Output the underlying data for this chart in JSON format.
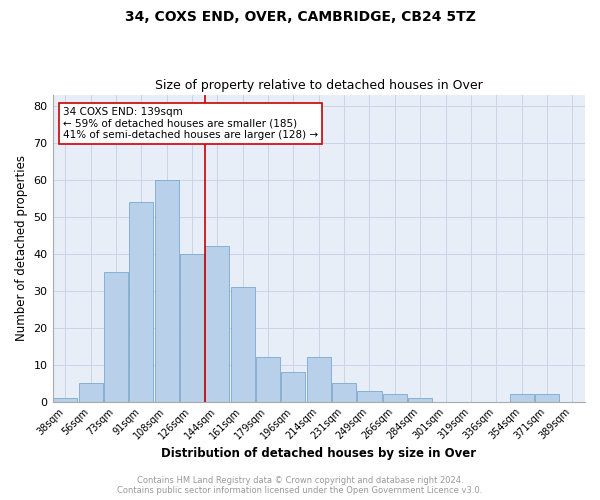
{
  "title1": "34, COXS END, OVER, CAMBRIDGE, CB24 5TZ",
  "title2": "Size of property relative to detached houses in Over",
  "xlabel": "Distribution of detached houses by size in Over",
  "ylabel": "Number of detached properties",
  "categories": [
    "38sqm",
    "56sqm",
    "73sqm",
    "91sqm",
    "108sqm",
    "126sqm",
    "144sqm",
    "161sqm",
    "179sqm",
    "196sqm",
    "214sqm",
    "231sqm",
    "249sqm",
    "266sqm",
    "284sqm",
    "301sqm",
    "319sqm",
    "336sqm",
    "354sqm",
    "371sqm",
    "389sqm"
  ],
  "values": [
    1,
    5,
    35,
    54,
    60,
    40,
    42,
    31,
    12,
    8,
    12,
    5,
    3,
    2,
    1,
    0,
    0,
    0,
    2,
    2,
    0
  ],
  "bar_color": "#b8d0ea",
  "bar_edge_color": "#7aaad0",
  "vline_x_index": 6,
  "vline_color": "#cc0000",
  "annotation_text": "34 COXS END: 139sqm\n← 59% of detached houses are smaller (185)\n41% of semi-detached houses are larger (128) →",
  "annotation_box_color": "#ffffff",
  "annotation_box_edge": "#cc0000",
  "ylim": [
    0,
    83
  ],
  "yticks": [
    0,
    10,
    20,
    30,
    40,
    50,
    60,
    70,
    80
  ],
  "grid_color": "#c8d4e8",
  "background_color": "#e8eef8",
  "footer": "Contains HM Land Registry data © Crown copyright and database right 2024.\nContains public sector information licensed under the Open Government Licence v3.0.",
  "footer_color": "#999999",
  "title1_fontsize": 10,
  "title2_fontsize": 9,
  "xlabel_fontsize": 8.5,
  "ylabel_fontsize": 8.5,
  "xtick_fontsize": 7,
  "ytick_fontsize": 8,
  "annotation_fontsize": 7.5,
  "footer_fontsize": 6
}
